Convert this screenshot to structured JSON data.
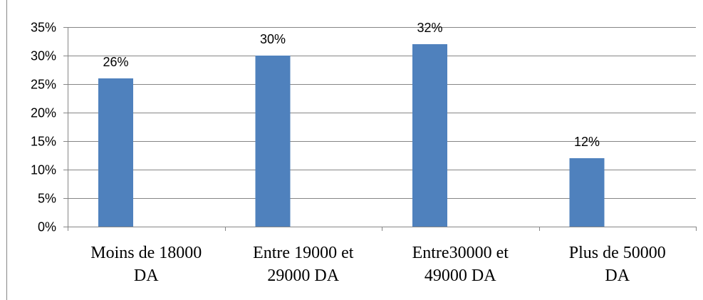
{
  "chart_data": {
    "type": "bar",
    "title": "",
    "xlabel": "",
    "ylabel": "",
    "categories": [
      [
        "Moins de 18000",
        "DA"
      ],
      [
        "Entre 19000 et",
        "29000 DA"
      ],
      [
        "Entre30000 et",
        "49000 DA"
      ],
      [
        "Plus de 50000",
        "DA"
      ]
    ],
    "values": [
      26,
      30,
      32,
      12
    ],
    "data_labels": [
      "26%",
      "30%",
      "32%",
      "12%"
    ],
    "ylim": [
      0,
      35
    ],
    "yticks": [
      0,
      5,
      10,
      15,
      20,
      25,
      30,
      35
    ],
    "ytick_labels": [
      "0%",
      "5%",
      "10%",
      "15%",
      "20%",
      "25%",
      "30%",
      "35%"
    ],
    "grid": true,
    "legend": "none",
    "bar_color": "#4F81BD",
    "grid_color": "#868686"
  }
}
